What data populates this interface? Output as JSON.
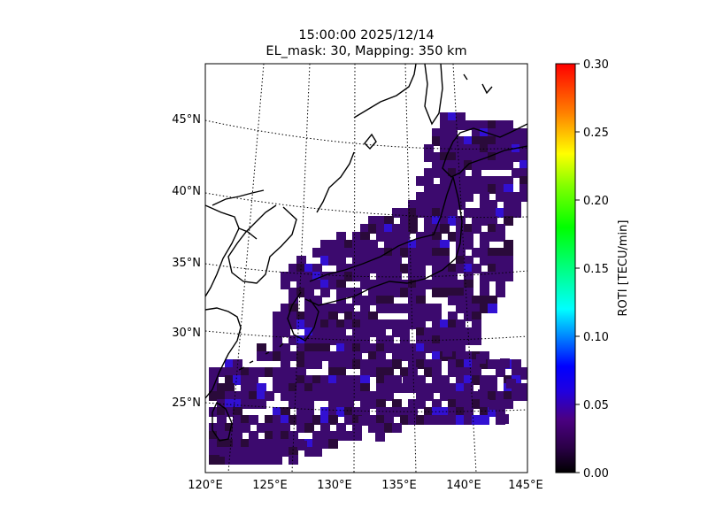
{
  "title": {
    "line1": "15:00:00 2025/12/14",
    "line2": "EL_mask: 30, Mapping: 350 km"
  },
  "map": {
    "lat_labels": [
      "45°N",
      "40°N",
      "35°N",
      "30°N",
      "25°N"
    ],
    "lon_labels": [
      "120°E",
      "125°E",
      "130°E",
      "135°E",
      "140°E",
      "145°E"
    ],
    "lat_range": [
      20,
      49
    ],
    "lon_range": [
      120,
      145
    ]
  },
  "colorbar": {
    "label": "ROTI [TECU/min]",
    "ticks": [
      "0.00",
      "0.05",
      "0.10",
      "0.15",
      "0.20",
      "0.25",
      "0.30"
    ],
    "range": [
      0,
      0.3
    ],
    "colormap": [
      "#000000",
      "#2a0046",
      "#4b0082",
      "#0000ff",
      "#00ffff",
      "#00ff00",
      "#ffff00",
      "#ff0000"
    ]
  },
  "chart_data": {
    "type": "heatmap",
    "value_label": "ROTI [TECU/min]",
    "typical_value": 0.04,
    "max_value": 0.06,
    "min_value": 0.0,
    "cell_colors": {
      "low": "#2a0a3a",
      "mid": "#3c0a6e",
      "high": "#3210d2"
    }
  }
}
